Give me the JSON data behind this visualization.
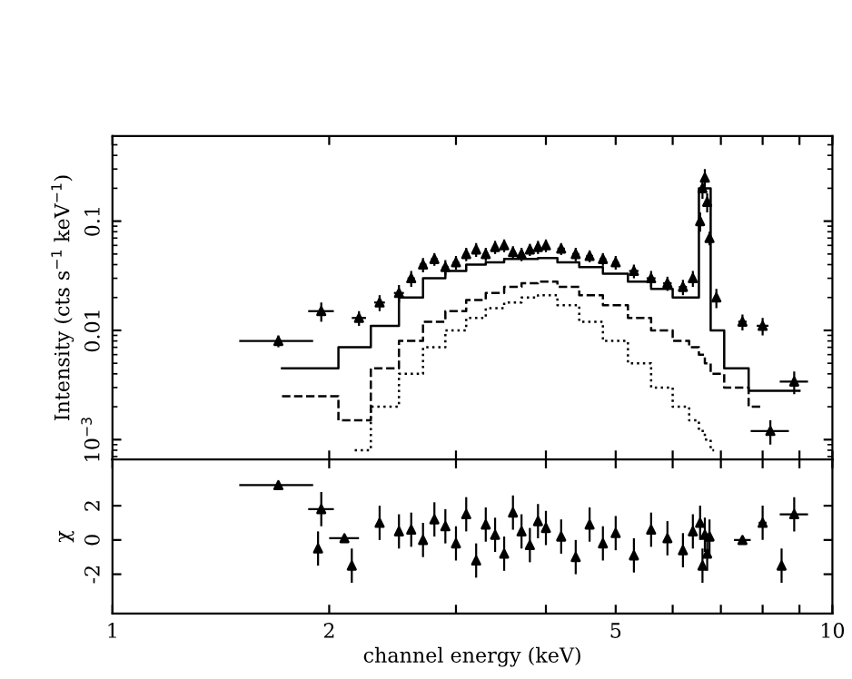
{
  "chart_data": [
    {
      "type": "scatter",
      "ylabel": "Intensity (cts s$^{−1}$ keV$^{−1}$)",
      "log": "xy",
      "xlim": [
        1,
        10
      ],
      "ylim": [
        0.00066,
        0.6
      ],
      "xticks": [
        1,
        2,
        {
          "value": 3,
          "label": null
        },
        {
          "value": 4,
          "label": null
        },
        5,
        {
          "value": 6,
          "label": null
        },
        {
          "value": 7,
          "label": null
        },
        {
          "value": 8,
          "label": null
        },
        {
          "value": 9,
          "label": null
        },
        10
      ],
      "yticks": [
        {
          "value": 0.001,
          "label": "10$^{−3}$"
        },
        0.01,
        0.1
      ],
      "tick_labels": "y",
      "grid": false,
      "legend": false,
      "series": [
        {
          "color": "#000000",
          "marker": "triangle",
          "x": [
            1.7,
            1.95,
            2.2,
            2.35,
            2.5,
            2.6,
            2.7,
            2.8,
            2.9,
            3.0,
            3.1,
            3.2,
            3.3,
            3.4,
            3.5,
            3.6,
            3.7,
            3.8,
            3.9,
            4.0,
            4.2,
            4.4,
            4.6,
            4.8,
            5.0,
            5.3,
            5.6,
            5.9,
            6.2,
            6.4,
            6.55,
            6.6,
            6.65,
            6.7,
            6.75,
            6.9,
            7.5,
            8.0,
            8.2,
            8.85
          ],
          "values": [
            0.008,
            0.015,
            0.013,
            0.018,
            0.022,
            0.03,
            0.04,
            0.045,
            0.038,
            0.042,
            0.05,
            0.055,
            0.05,
            0.058,
            0.06,
            0.052,
            0.05,
            0.055,
            0.058,
            0.06,
            0.056,
            0.05,
            0.048,
            0.045,
            0.042,
            0.035,
            0.03,
            0.027,
            0.025,
            0.03,
            0.1,
            0.2,
            0.25,
            0.15,
            0.07,
            0.02,
            0.012,
            0.011,
            0.0012,
            0.0034
          ],
          "errors": [
            0.001,
            0.003,
            0.002,
            0.003,
            0.004,
            0.005,
            0.006,
            0.006,
            0.006,
            0.006,
            0.007,
            0.008,
            0.007,
            0.008,
            0.008,
            0.007,
            0.007,
            0.007,
            0.008,
            0.008,
            0.007,
            0.007,
            0.006,
            0.006,
            0.006,
            0.005,
            0.005,
            0.004,
            0.004,
            0.005,
            0.02,
            0.04,
            0.05,
            0.03,
            0.01,
            0.004,
            0.002,
            0.002,
            0.0003,
            0.0008
          ],
          "xerrors": [
            0.2,
            0.08,
            0.05,
            0.04,
            0.04,
            0.03,
            0.03,
            0.03,
            0.03,
            0.03,
            0.03,
            0.03,
            0.03,
            0.03,
            0.03,
            0.03,
            0.03,
            0.03,
            0.03,
            0.03,
            0.05,
            0.05,
            0.05,
            0.05,
            0.05,
            0.08,
            0.08,
            0.08,
            0.08,
            0.05,
            0.02,
            0.02,
            0.02,
            0.02,
            0.02,
            0.05,
            0.1,
            0.15,
            0.5,
            0.4
          ]
        },
        {
          "type": "step",
          "color": "#000000",
          "line_style": "solid",
          "x": [
            1.72,
            1.95,
            2.17,
            2.4,
            2.6,
            2.8,
            3.0,
            3.2,
            3.4,
            3.6,
            3.8,
            4.0,
            4.3,
            4.6,
            5.0,
            5.4,
            5.8,
            6.2,
            6.45,
            6.6,
            6.7,
            6.85,
            7.3,
            8.0,
            9.0
          ],
          "values": [
            0.0045,
            0.0045,
            0.007,
            0.011,
            0.02,
            0.03,
            0.035,
            0.04,
            0.042,
            0.045,
            0.045,
            0.046,
            0.042,
            0.038,
            0.033,
            0.028,
            0.024,
            0.02,
            0.02,
            0.2,
            0.2,
            0.01,
            0.0045,
            0.0028,
            0.0028
          ]
        },
        {
          "type": "step",
          "color": "#000000",
          "line_style": "dashed",
          "x": [
            1.72,
            1.95,
            2.17,
            2.4,
            2.6,
            2.8,
            3.0,
            3.2,
            3.4,
            3.6,
            3.8,
            4.0,
            4.3,
            4.6,
            5.0,
            5.4,
            5.8,
            6.2,
            6.45,
            6.6,
            6.7,
            6.85,
            7.3,
            8.0
          ],
          "values": [
            0.0025,
            0.0025,
            0.0015,
            0.0045,
            0.008,
            0.012,
            0.015,
            0.019,
            0.022,
            0.025,
            0.027,
            0.028,
            0.025,
            0.021,
            0.017,
            0.013,
            0.01,
            0.008,
            0.007,
            0.006,
            0.005,
            0.004,
            0.003,
            0.002
          ]
        },
        {
          "type": "step",
          "color": "#000000",
          "line_style": "dotted",
          "x": [
            2.17,
            2.4,
            2.6,
            2.8,
            3.0,
            3.2,
            3.4,
            3.6,
            3.8,
            4.0,
            4.3,
            4.6,
            5.0,
            5.4,
            5.8,
            6.2,
            6.45,
            6.6,
            6.7,
            6.85
          ],
          "values": [
            0.0008,
            0.002,
            0.004,
            0.007,
            0.01,
            0.013,
            0.016,
            0.018,
            0.02,
            0.021,
            0.017,
            0.012,
            0.008,
            0.005,
            0.003,
            0.002,
            0.0015,
            0.0012,
            0.001,
            0.0008
          ]
        }
      ]
    },
    {
      "type": "scatter",
      "xlabel": "channel energy (keV)",
      "ylabel": "χ",
      "log": "x",
      "xlim": [
        1,
        10
      ],
      "ylim": [
        -4.3,
        4.7
      ],
      "xticks": [
        1,
        2,
        {
          "value": 3,
          "label": null
        },
        {
          "value": 4,
          "label": null
        },
        5,
        {
          "value": 6,
          "label": null
        },
        {
          "value": 7,
          "label": null
        },
        {
          "value": 8,
          "label": null
        },
        {
          "value": 9,
          "label": null
        },
        10
      ],
      "yticks": [
        -2,
        0,
        2
      ],
      "grid": false,
      "legend": false,
      "series": [
        {
          "color": "#000000",
          "marker": "triangle",
          "x": [
            1.7,
            1.95,
            1.93,
            2.1,
            2.15,
            2.35,
            2.5,
            2.6,
            2.7,
            2.8,
            2.9,
            3.0,
            3.1,
            3.2,
            3.3,
            3.4,
            3.5,
            3.6,
            3.7,
            3.8,
            3.9,
            4.0,
            4.2,
            4.4,
            4.6,
            4.8,
            5.0,
            5.3,
            5.6,
            5.9,
            6.2,
            6.4,
            6.55,
            6.6,
            6.65,
            6.7,
            6.75,
            7.5,
            8.0,
            8.5,
            8.85
          ],
          "values": [
            3.2,
            1.8,
            -0.5,
            0.1,
            -1.5,
            1.0,
            0.5,
            0.6,
            0.0,
            1.2,
            0.8,
            -0.2,
            1.5,
            -1.2,
            0.9,
            0.3,
            -0.8,
            1.6,
            0.5,
            -0.3,
            1.1,
            0.7,
            0.2,
            -1.0,
            0.9,
            -0.2,
            0.4,
            -0.9,
            0.6,
            0.1,
            -0.6,
            0.5,
            1.0,
            -1.5,
            0.3,
            -0.8,
            0.2,
            0.0,
            1.0,
            -1.5,
            1.5
          ],
          "errors": [
            0.1,
            1,
            1,
            0.1,
            1,
            1,
            1,
            1,
            1,
            1,
            1,
            1,
            1,
            1,
            1,
            1,
            1,
            1,
            1,
            1,
            1,
            1,
            1,
            1,
            1,
            1,
            1,
            1,
            1,
            1,
            1,
            1,
            1,
            1,
            1,
            1,
            1,
            0.1,
            1,
            1,
            1
          ],
          "xerrors": [
            0.2,
            0.08,
            0.01,
            0.1,
            0.01,
            0.02,
            0.02,
            0.02,
            0.02,
            0.02,
            0.02,
            0.02,
            0.02,
            0.02,
            0.02,
            0.02,
            0.02,
            0.02,
            0.02,
            0.02,
            0.02,
            0.02,
            0.03,
            0.03,
            0.03,
            0.03,
            0.04,
            0.04,
            0.04,
            0.04,
            0.04,
            0.03,
            0.02,
            0.02,
            0.02,
            0.02,
            0.02,
            0.2,
            0.1,
            0.05,
            0.4
          ]
        }
      ]
    }
  ]
}
